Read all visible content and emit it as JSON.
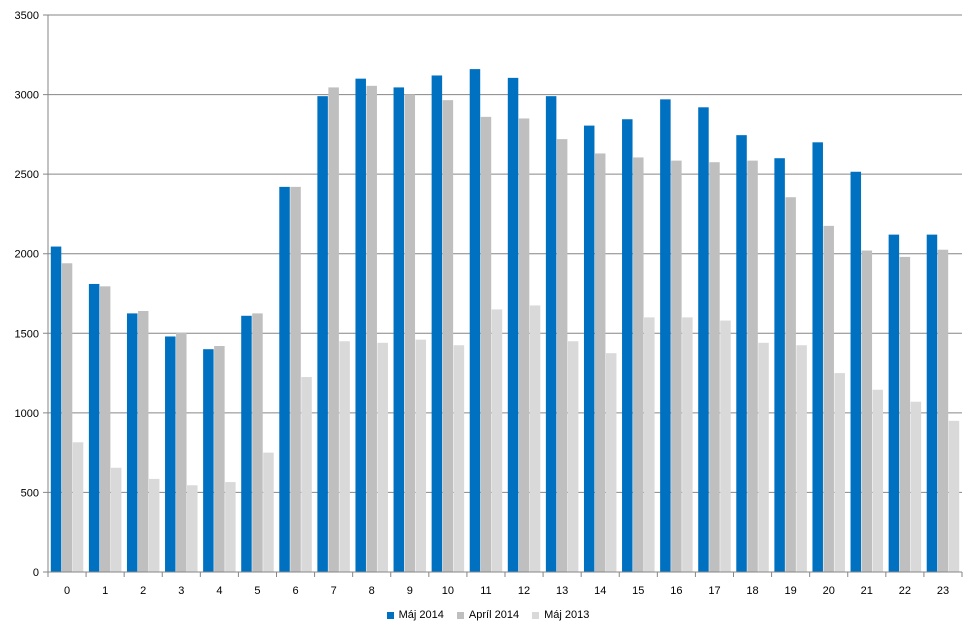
{
  "chart_data": {
    "type": "bar",
    "categories": [
      "0",
      "1",
      "2",
      "3",
      "4",
      "5",
      "6",
      "7",
      "8",
      "9",
      "10",
      "11",
      "12",
      "13",
      "14",
      "15",
      "16",
      "17",
      "18",
      "19",
      "20",
      "21",
      "22",
      "23"
    ],
    "series": [
      {
        "name": "Máj 2014",
        "color": "#0070c0",
        "values": [
          2045,
          1810,
          1625,
          1480,
          1400,
          1610,
          2420,
          2990,
          3100,
          3045,
          3120,
          3160,
          3105,
          2990,
          2805,
          2845,
          2970,
          2920,
          2745,
          2600,
          2700,
          2515,
          2120,
          2120
        ]
      },
      {
        "name": "Apríl 2014",
        "color": "#bfbfbf",
        "values": [
          1940,
          1795,
          1640,
          1505,
          1420,
          1625,
          2420,
          3045,
          3055,
          3000,
          2965,
          2860,
          2850,
          2720,
          2630,
          2605,
          2585,
          2575,
          2585,
          2355,
          2175,
          2020,
          1980,
          2025
        ]
      },
      {
        "name": "Máj 2013",
        "color": "#d9d9d9",
        "values": [
          815,
          655,
          585,
          545,
          565,
          750,
          1225,
          1450,
          1440,
          1460,
          1425,
          1650,
          1675,
          1450,
          1375,
          1600,
          1600,
          1580,
          1440,
          1425,
          1250,
          1145,
          1070,
          950
        ]
      }
    ],
    "ylim": [
      0,
      3500
    ],
    "yticks": [
      "0",
      "500",
      "1000",
      "1500",
      "2000",
      "2500",
      "3000",
      "3500"
    ],
    "grid": true,
    "legend_position": "bottom"
  }
}
